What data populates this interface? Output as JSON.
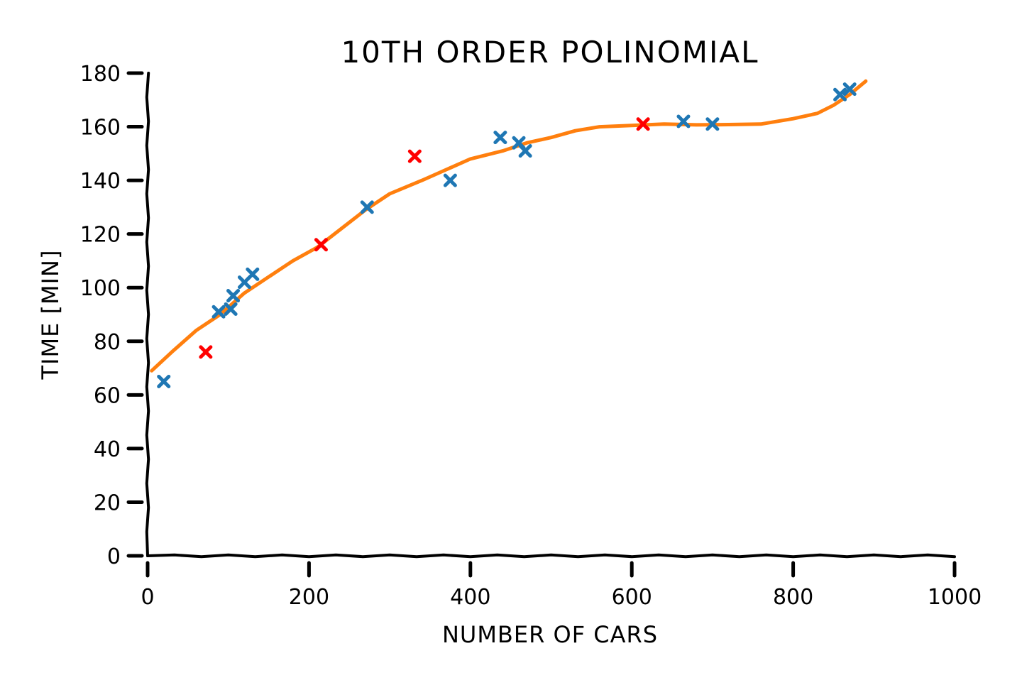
{
  "chart_data": {
    "type": "scatter",
    "title": "10TH ORDER POLINOMIAL",
    "xlabel": "NUMBER OF CARS",
    "ylabel": "TIME [MIN]",
    "xlim": [
      0,
      1000
    ],
    "ylim": [
      0,
      180
    ],
    "x_ticks": [
      0,
      200,
      400,
      600,
      800,
      1000
    ],
    "y_ticks": [
      0,
      20,
      40,
      60,
      80,
      100,
      120,
      140,
      160,
      180
    ],
    "grid": false,
    "legend": "none",
    "colors": {
      "training": "#1f77b4",
      "test": "#ff0000",
      "fit": "#ff7f0e"
    },
    "series": [
      {
        "type": "scatter",
        "marker": "x",
        "color": "#1f77b4",
        "points": [
          [
            20,
            65
          ],
          [
            88,
            91
          ],
          [
            103,
            92
          ],
          [
            106,
            97
          ],
          [
            120,
            102
          ],
          [
            130,
            105
          ],
          [
            272,
            130
          ],
          [
            375,
            140
          ],
          [
            437,
            156
          ],
          [
            460,
            154
          ],
          [
            468,
            151
          ],
          [
            664,
            162
          ],
          [
            700,
            161
          ],
          [
            858,
            172
          ],
          [
            870,
            174
          ]
        ]
      },
      {
        "type": "scatter",
        "marker": "x",
        "color": "#ff0000",
        "points": [
          [
            72,
            76
          ],
          [
            215,
            116
          ],
          [
            331,
            149
          ],
          [
            614,
            161
          ]
        ]
      },
      {
        "type": "line",
        "color": "#ff7f0e",
        "points": [
          [
            5,
            69
          ],
          [
            30,
            76
          ],
          [
            60,
            84
          ],
          [
            90,
            90
          ],
          [
            120,
            98
          ],
          [
            150,
            104
          ],
          [
            180,
            110
          ],
          [
            210,
            115
          ],
          [
            240,
            122
          ],
          [
            270,
            129
          ],
          [
            300,
            135
          ],
          [
            340,
            140
          ],
          [
            370,
            144
          ],
          [
            400,
            148
          ],
          [
            440,
            151
          ],
          [
            470,
            154
          ],
          [
            500,
            156
          ],
          [
            530,
            158.5
          ],
          [
            560,
            160
          ],
          [
            600,
            160.5
          ],
          [
            640,
            161
          ],
          [
            680,
            160.7
          ],
          [
            720,
            160.8
          ],
          [
            760,
            161
          ],
          [
            800,
            163
          ],
          [
            830,
            165
          ],
          [
            850,
            168
          ],
          [
            870,
            172
          ],
          [
            890,
            177
          ]
        ]
      }
    ]
  }
}
